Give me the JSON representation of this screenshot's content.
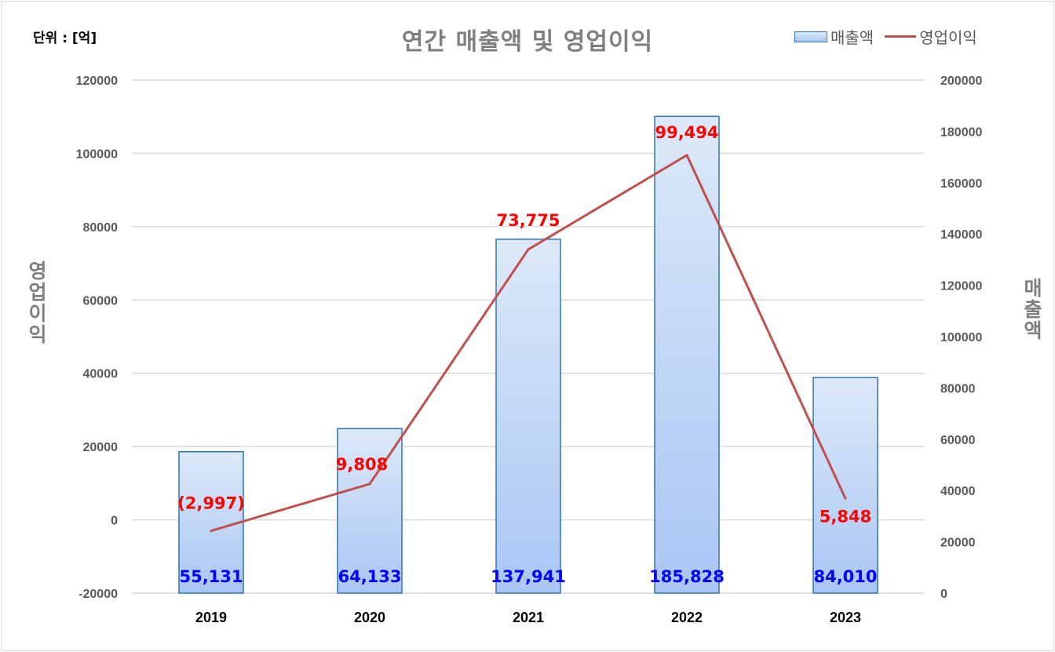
{
  "unit_label": "단위 : [억]",
  "legend": {
    "bar_label": "매출액",
    "line_label": "영업이익"
  },
  "colors": {
    "bar_fill_top": "#dce9f8",
    "bar_fill_bottom": "#a9c6f5",
    "bar_stroke": "#2e75b6",
    "line": "#c0504d",
    "line_label": "#ff0000",
    "bar_label": "#0000ff",
    "axis_text": "#595959",
    "grid": "#d9d9d9"
  },
  "chart_data": {
    "type": "bar",
    "title": "연간 매출액 및 영업이익",
    "categories": [
      "2019",
      "2020",
      "2021",
      "2022",
      "2023"
    ],
    "series": [
      {
        "name": "매출액",
        "type": "bar",
        "axis": "right",
        "values": [
          55131,
          64133,
          137941,
          185828,
          84010
        ],
        "labels": [
          "55,131",
          "64,133",
          "137,941",
          "185,828",
          "84,010"
        ]
      },
      {
        "name": "영업이익",
        "type": "line",
        "axis": "left",
        "values": [
          -2997,
          9808,
          73775,
          99494,
          5848
        ],
        "labels": [
          "(2,997)",
          "9,808",
          "73,775",
          "99,494",
          "5,848"
        ]
      }
    ],
    "ylabel_left": "영업이익",
    "ylabel_right": "매출액",
    "ylim_left": [
      -20000,
      120000
    ],
    "yticks_left": [
      "-20000",
      "0",
      "20000",
      "40000",
      "60000",
      "80000",
      "100000",
      "120000"
    ],
    "ylim_right": [
      0,
      200000
    ],
    "yticks_right": [
      "0",
      "20000",
      "40000",
      "60000",
      "80000",
      "100000",
      "120000",
      "140000",
      "160000",
      "180000",
      "200000"
    ],
    "grid": true,
    "legend_position": "top-right"
  }
}
